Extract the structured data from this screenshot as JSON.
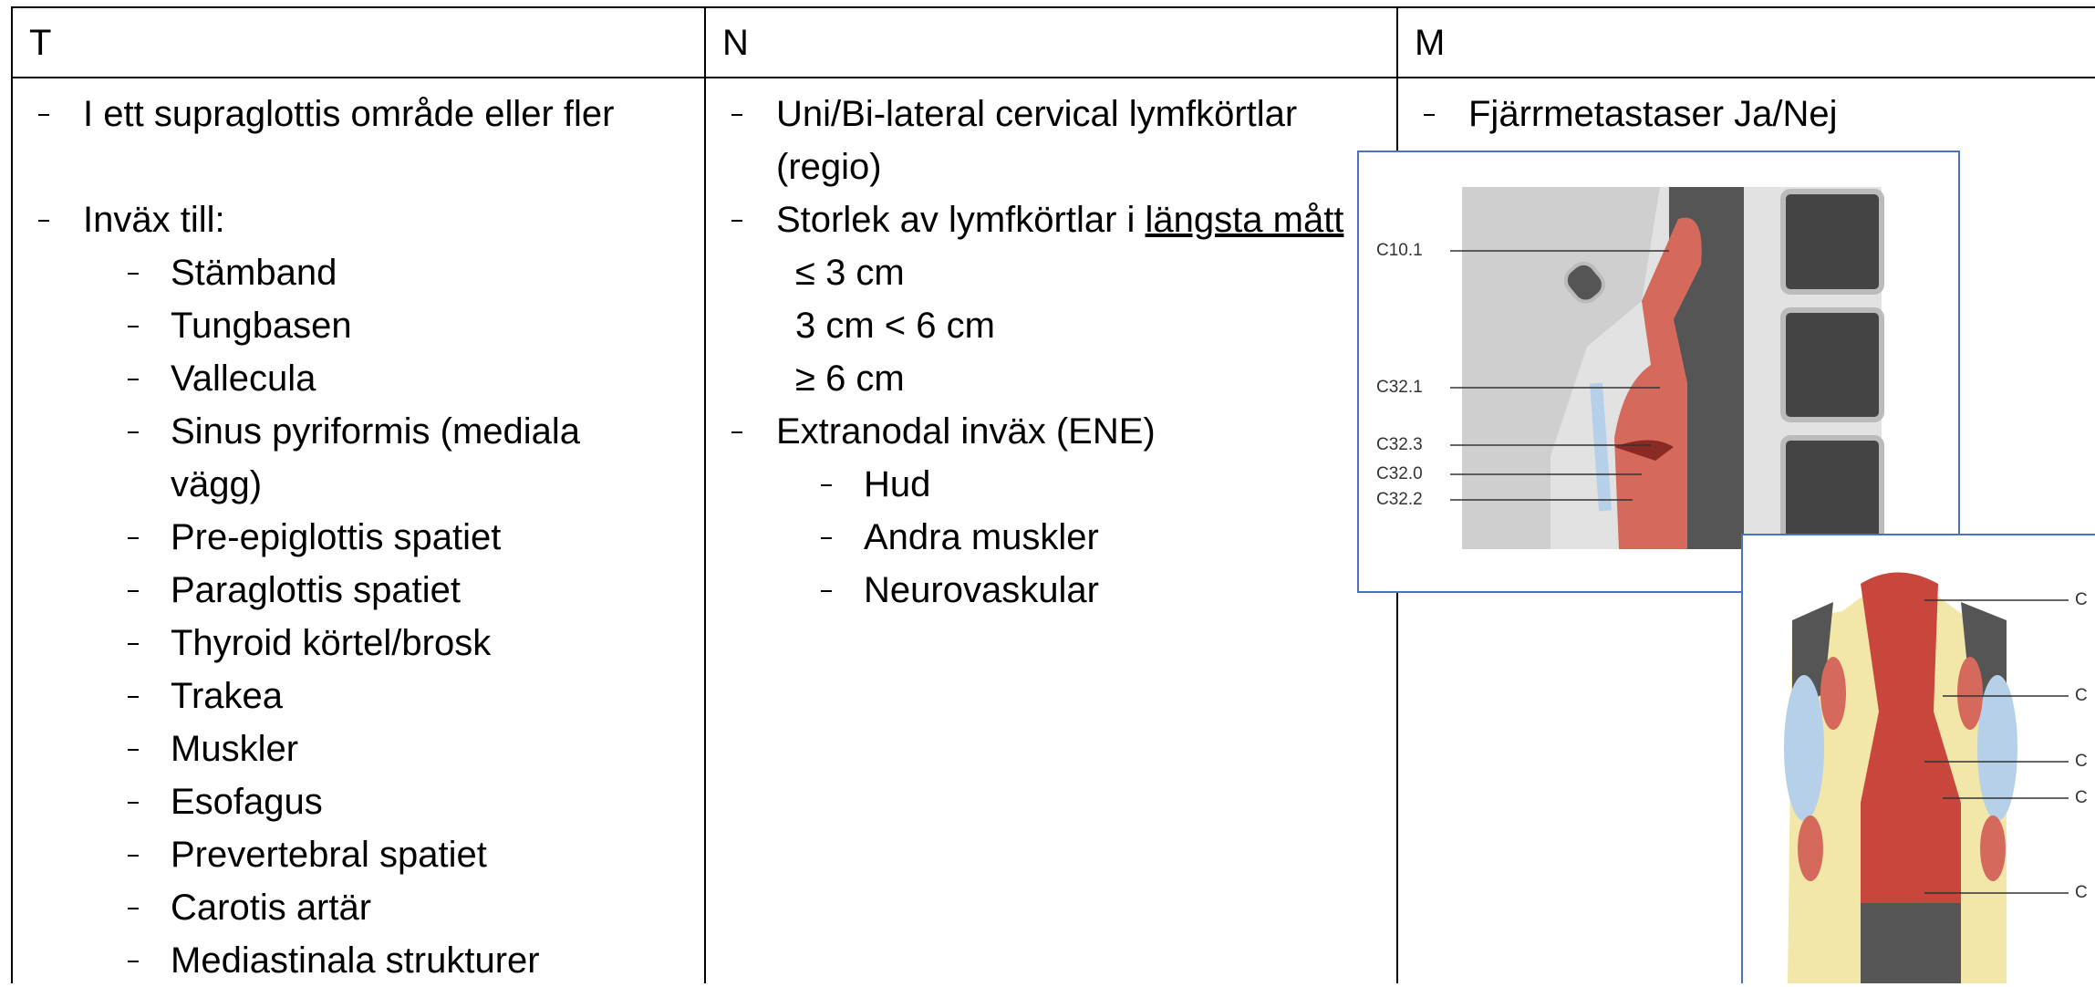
{
  "table": {
    "header": [
      "T",
      "N",
      "M"
    ],
    "columns": [
      [
        {
          "text": "I ett supraglottis område eller fler"
        },
        {
          "text": "Inväx till:",
          "items": [
            "Stämband",
            "Tungbasen",
            "Vallecula",
            "Sinus pyriformis (mediala vägg)",
            "Pre-epiglottis spatiet",
            "Paraglottis spatiet",
            "Thyroid körtel/brosk",
            "Trakea",
            "Muskler",
            "Esofagus",
            "Prevertebral spatiet",
            "Carotis artär",
            "Mediastinala strukturer"
          ]
        }
      ],
      [
        {
          "text": "Uni/Bi-lateral cervical lymfkörtlar (regio)"
        },
        {
          "text": "Storlek av lymfkörtlar i ",
          "underlined": "längsta mått",
          "lines": [
            "≤ 3 cm",
            "3 cm < 6 cm",
            "≥ 6 cm"
          ]
        },
        {
          "text": "Extranodal inväx (ENE)",
          "items": [
            "Hud",
            "Andra muskler",
            "Neurovaskular"
          ]
        }
      ],
      [
        {
          "text": "Fjärrmetastaser Ja/Nej"
        }
      ]
    ]
  },
  "figures": [
    {
      "labels": [
        "C10.1",
        "C32.1",
        "C32.3",
        "C32.0",
        "C32.2"
      ]
    },
    {
      "labels": [
        "C",
        "C",
        "C",
        "C",
        "C"
      ]
    }
  ]
}
